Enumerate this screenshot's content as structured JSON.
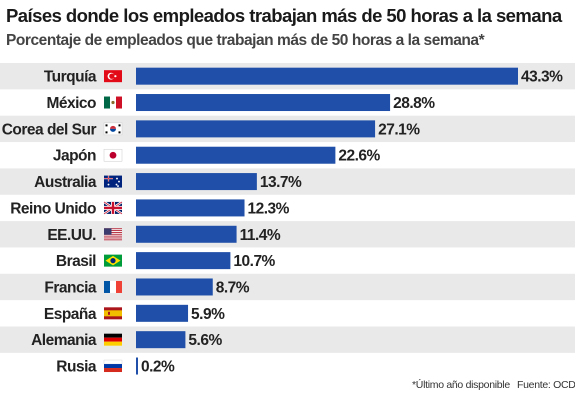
{
  "chart_data": {
    "type": "bar",
    "orientation": "horizontal",
    "title": "Países donde los empleados trabajan más de 50 horas a la semana",
    "subtitle": "Porcentaje de empleados que trabajan más de 50 horas a la semana*",
    "categories": [
      "Turquía",
      "México",
      "Corea del Sur",
      "Japón",
      "Australia",
      "Reino Unido",
      "EE.UU.",
      "Brasil",
      "Francia",
      "España",
      "Alemania",
      "Rusia"
    ],
    "values": [
      43.3,
      28.8,
      27.1,
      22.6,
      13.7,
      12.3,
      11.4,
      10.7,
      8.7,
      5.9,
      5.6,
      0.2
    ],
    "data_labels": [
      "43.3%",
      "28.8%",
      "27.1%",
      "22.6%",
      "13.7%",
      "12.3%",
      "11.4%",
      "10.7%",
      "8.7%",
      "5.9%",
      "5.6%",
      "0.2%"
    ],
    "flag_icons": [
      "flag-turkey-icon",
      "flag-mexico-icon",
      "flag-south-korea-icon",
      "flag-japan-icon",
      "flag-australia-icon",
      "flag-uk-icon",
      "flag-usa-icon",
      "flag-brazil-icon",
      "flag-france-icon",
      "flag-spain-icon",
      "flag-germany-icon",
      "flag-russia-icon"
    ],
    "xlim": [
      0,
      43.3
    ],
    "grid": false,
    "legend": "none",
    "colors": {
      "bar": "#1f4fa8",
      "row_band": "#e9e9e9",
      "text": "#222222"
    }
  },
  "footer": {
    "footnote": "*Último año disponible",
    "source": "Fuente: OCDE"
  }
}
